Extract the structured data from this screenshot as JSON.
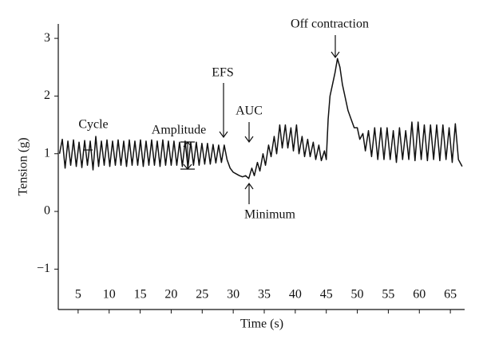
{
  "chart_data": {
    "type": "line",
    "xlabel": "Time (s)",
    "ylabel": "Tension (g)",
    "annotations": [
      "Cycle",
      "Amplitude",
      "EFS",
      "AUC",
      "Minimum",
      "Off contraction"
    ],
    "xlim": [
      1.8,
      67.3
    ],
    "ylim": [
      -1.7,
      3.25
    ],
    "xticks": [
      5,
      10,
      15,
      20,
      25,
      30,
      35,
      40,
      45,
      50,
      55,
      60,
      65
    ],
    "yticks": [
      {
        "value": -1,
        "label": "−1"
      },
      0,
      1,
      2,
      3
    ],
    "grid": false,
    "series": [
      {
        "color": "#111111",
        "x": [
          2.0,
          2.45,
          2.9,
          3.35,
          3.8,
          4.25,
          4.7,
          5.15,
          5.6,
          6.05,
          6.5,
          6.95,
          7.4,
          7.85,
          8.3,
          8.75,
          9.2,
          9.65,
          10.1,
          10.55,
          11.0,
          11.45,
          11.9,
          12.35,
          12.8,
          13.25,
          13.7,
          14.15,
          14.6,
          15.05,
          15.5,
          15.95,
          16.4,
          16.85,
          17.3,
          17.75,
          18.2,
          18.65,
          19.1,
          19.55,
          20.0,
          20.45,
          20.9,
          21.35,
          21.8,
          22.25,
          22.7,
          23.15,
          23.6,
          24.05,
          24.5,
          24.95,
          25.4,
          25.85,
          26.3,
          26.75,
          27.2,
          27.65,
          28.1,
          28.55,
          29.0,
          29.5,
          30.0,
          30.5,
          31.0,
          31.5,
          32.0,
          32.5,
          33.0,
          33.4,
          33.9,
          34.3,
          34.8,
          35.2,
          35.7,
          36.1,
          36.6,
          37.0,
          37.5,
          37.9,
          38.4,
          38.8,
          39.3,
          39.7,
          40.2,
          40.6,
          41.1,
          41.5,
          42.0,
          42.4,
          42.9,
          43.3,
          43.8,
          44.2,
          44.7,
          45.0,
          45.3,
          45.6,
          46.0,
          46.4,
          46.8,
          47.2,
          47.6,
          48.0,
          48.5,
          49.0,
          49.5,
          50.0,
          50.4,
          50.9,
          51.3,
          51.8,
          52.3,
          52.8,
          53.3,
          53.8,
          54.3,
          54.8,
          55.3,
          55.8,
          56.3,
          56.8,
          57.3,
          57.8,
          58.3,
          58.8,
          59.3,
          59.8,
          60.3,
          60.8,
          61.3,
          61.8,
          62.3,
          62.8,
          63.3,
          63.8,
          64.3,
          64.8,
          65.3,
          65.8,
          66.3,
          66.9
        ],
        "values": [
          1.0,
          1.25,
          0.75,
          1.22,
          0.8,
          1.24,
          0.78,
          1.2,
          0.76,
          1.23,
          0.8,
          1.22,
          0.72,
          1.3,
          0.78,
          1.22,
          0.8,
          1.24,
          0.78,
          1.22,
          0.8,
          1.24,
          0.8,
          1.22,
          0.78,
          1.24,
          0.8,
          1.22,
          0.8,
          1.24,
          0.78,
          1.22,
          0.8,
          1.24,
          0.8,
          1.22,
          0.78,
          1.24,
          0.8,
          1.22,
          0.8,
          1.22,
          0.8,
          1.2,
          0.78,
          1.22,
          0.76,
          1.2,
          0.8,
          1.2,
          0.8,
          1.18,
          0.82,
          1.18,
          0.82,
          1.16,
          0.84,
          1.15,
          0.85,
          1.15,
          0.9,
          0.75,
          0.68,
          0.65,
          0.62,
          0.6,
          0.62,
          0.57,
          0.75,
          0.62,
          0.85,
          0.7,
          1.0,
          0.8,
          1.15,
          0.95,
          1.3,
          1.0,
          1.5,
          1.1,
          1.5,
          1.1,
          1.45,
          1.05,
          1.5,
          1.0,
          1.3,
          0.95,
          1.25,
          0.95,
          1.2,
          0.9,
          1.15,
          0.88,
          1.05,
          0.9,
          1.6,
          2.0,
          2.2,
          2.4,
          2.65,
          2.5,
          2.2,
          2.0,
          1.75,
          1.6,
          1.45,
          1.45,
          1.25,
          1.35,
          1.05,
          1.4,
          0.95,
          1.45,
          0.9,
          1.45,
          0.9,
          1.45,
          0.9,
          1.4,
          0.85,
          1.45,
          0.9,
          1.4,
          0.9,
          1.55,
          0.88,
          1.55,
          0.9,
          1.5,
          0.88,
          1.5,
          0.9,
          1.5,
          0.88,
          1.5,
          0.9,
          1.45,
          0.85,
          1.52,
          0.9,
          0.78
        ]
      }
    ]
  }
}
